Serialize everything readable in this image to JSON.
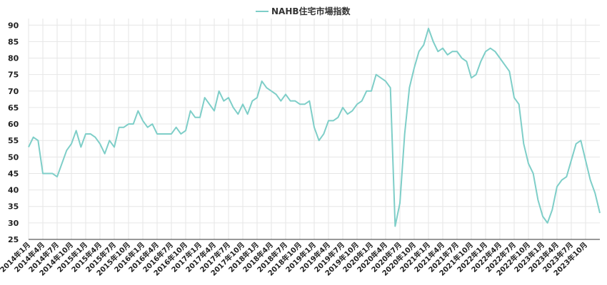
{
  "chart_data": {
    "type": "line",
    "legend_position": "top-center",
    "grid": true,
    "ylim": [
      25,
      92
    ],
    "yticks": [
      25,
      30,
      35,
      40,
      45,
      50,
      55,
      60,
      65,
      70,
      75,
      80,
      85,
      90
    ],
    "series": [
      {
        "name": "NAHB住宅市場指数",
        "color": "#7ecec8",
        "values": [
          53,
          56,
          55,
          45,
          45,
          45,
          44,
          48,
          52,
          54,
          58,
          53,
          57,
          57,
          56,
          54,
          51,
          55,
          53,
          59,
          59,
          60,
          60,
          64,
          61,
          59,
          60,
          57,
          57,
          57,
          57,
          59,
          57,
          58,
          64,
          62,
          62,
          68,
          66,
          64,
          70,
          67,
          68,
          65,
          63,
          66,
          63,
          67,
          68,
          73,
          71,
          70,
          69,
          67,
          69,
          67,
          67,
          66,
          66,
          67,
          59,
          55,
          57,
          61,
          61,
          62,
          65,
          63,
          64,
          66,
          67,
          70,
          70,
          75,
          74,
          73,
          71,
          29,
          36,
          57,
          71,
          77,
          82,
          84,
          89,
          85,
          82,
          83,
          81,
          82,
          82,
          80,
          79,
          74,
          75,
          79,
          82,
          83,
          82,
          80,
          78,
          76,
          68,
          66,
          54,
          48,
          45,
          37,
          32,
          30,
          34,
          41,
          43,
          44,
          49,
          54,
          55,
          49,
          43,
          39,
          33
        ]
      }
    ],
    "x_tick_labels": [
      "2014年1月",
      "2014年4月",
      "2014年7月",
      "2014年10月",
      "2015年1月",
      "2015年4月",
      "2015年7月",
      "2015年10月",
      "2016年1月",
      "2016年4月",
      "2016年7月",
      "2016年10月",
      "2017年1月",
      "2017年4月",
      "2017年7月",
      "2017年10月",
      "2018年1月",
      "2018年4月",
      "2018年7月",
      "2018年10月",
      "2019年1月",
      "2019年4月",
      "2019年7月",
      "2019年10月",
      "2020年1月",
      "2020年4月",
      "2020年7月",
      "2020年10月",
      "2021年1月",
      "2021年4月",
      "2021年7月",
      "2021年10月",
      "2022年1月",
      "2022年4月",
      "2022年7月",
      "2022年10月",
      "2023年1月",
      "2023年4月",
      "2023年7月",
      "2023年10月"
    ]
  }
}
